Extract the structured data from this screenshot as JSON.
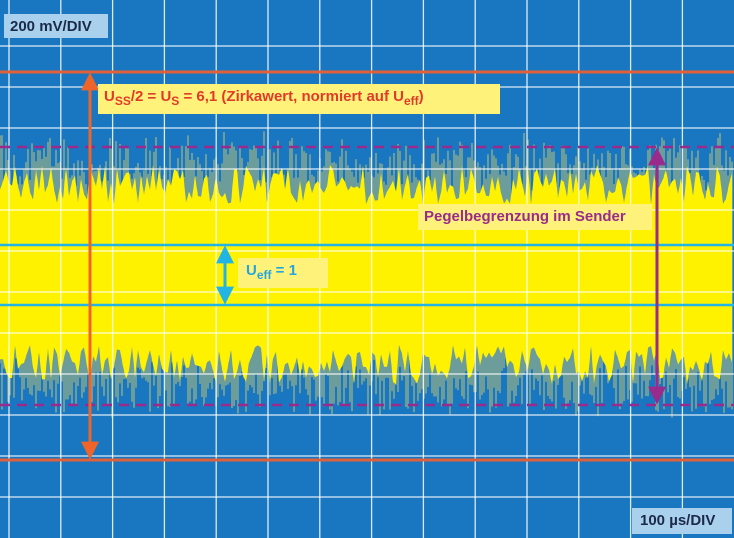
{
  "scale_labels": {
    "vertical": "200 mV/DIV",
    "horizontal": "100 µs/DIV"
  },
  "annotations": {
    "peak": [
      "U",
      "SS",
      "/2 = U",
      "S",
      " = 6,1 (Zirkawert, normiert auf U",
      "eff",
      ")"
    ],
    "limit": "Pegelbegrenzung im Sender",
    "rms": [
      "U",
      "eff",
      " = 1"
    ]
  }
}
